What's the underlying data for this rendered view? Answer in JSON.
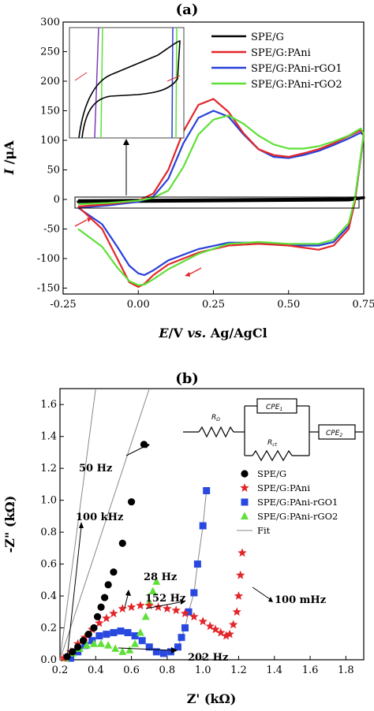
{
  "chart_data": [
    {
      "type": "line",
      "panel_label": "(a)",
      "xlabel_parts": [
        "E",
        "/V ",
        "vs.",
        " Ag/AgCl"
      ],
      "ylabel_parts": [
        "I",
        " /μA"
      ],
      "xlim": [
        -0.25,
        0.75
      ],
      "ylim": [
        -160,
        300
      ],
      "xticks": [
        "-0.25",
        "0.00",
        "0.25",
        "0.50",
        "0.75"
      ],
      "xtick_values": [
        -0.25,
        0,
        0.25,
        0.5,
        0.75
      ],
      "yticks": [
        "-150",
        "-100",
        "-50",
        "0",
        "50",
        "100",
        "150",
        "200",
        "250",
        "300"
      ],
      "ytick_values": [
        -150,
        -100,
        -50,
        0,
        50,
        100,
        150,
        200,
        250,
        300
      ],
      "legend_position": "top-right",
      "series": [
        {
          "name": "SPE/G",
          "color": "#000000",
          "x": [
            -0.2,
            0.1,
            0.4,
            0.7,
            0.75,
            0.7,
            0.4,
            0.1,
            -0.2,
            -0.2
          ],
          "y": [
            -2,
            -1,
            0,
            1,
            3,
            -1,
            -2,
            -3,
            -4,
            -2
          ]
        },
        {
          "name": "SPE/G:PAni",
          "color": "#e2262a",
          "x": [
            -0.2,
            -0.1,
            0.0,
            0.05,
            0.1,
            0.15,
            0.2,
            0.25,
            0.3,
            0.35,
            0.4,
            0.45,
            0.5,
            0.55,
            0.6,
            0.65,
            0.7,
            0.74,
            0.75,
            0.72,
            0.7,
            0.65,
            0.6,
            0.5,
            0.4,
            0.3,
            0.2,
            0.1,
            0.05,
            0.02,
            0.0,
            -0.03,
            -0.07,
            -0.12,
            -0.2
          ],
          "y": [
            -12,
            -8,
            -2,
            10,
            50,
            115,
            160,
            170,
            148,
            112,
            85,
            75,
            72,
            78,
            85,
            95,
            107,
            117,
            110,
            -5,
            -50,
            -78,
            -85,
            -78,
            -75,
            -78,
            -90,
            -110,
            -128,
            -143,
            -148,
            -140,
            -100,
            -50,
            -12
          ]
        },
        {
          "name": "SPE/G:PAni-rGO1",
          "color": "#2840d8",
          "x": [
            -0.2,
            -0.1,
            0.0,
            0.05,
            0.1,
            0.15,
            0.2,
            0.25,
            0.3,
            0.35,
            0.4,
            0.45,
            0.5,
            0.55,
            0.6,
            0.65,
            0.7,
            0.74,
            0.75,
            0.72,
            0.7,
            0.65,
            0.6,
            0.5,
            0.4,
            0.3,
            0.2,
            0.1,
            0.05,
            0.02,
            0.0,
            -0.03,
            -0.07,
            -0.12,
            -0.2
          ],
          "y": [
            -14,
            -10,
            -4,
            5,
            35,
            95,
            138,
            150,
            140,
            110,
            85,
            72,
            70,
            75,
            82,
            92,
            103,
            113,
            108,
            -5,
            -45,
            -72,
            -78,
            -78,
            -73,
            -73,
            -84,
            -103,
            -120,
            -128,
            -125,
            -112,
            -80,
            -42,
            -14
          ]
        },
        {
          "name": "SPE/G:PAni-rGO2",
          "color": "#5fe038",
          "x": [
            -0.2,
            -0.1,
            0.0,
            0.05,
            0.1,
            0.15,
            0.2,
            0.25,
            0.3,
            0.35,
            0.4,
            0.45,
            0.5,
            0.55,
            0.6,
            0.65,
            0.7,
            0.74,
            0.75,
            0.72,
            0.7,
            0.65,
            0.6,
            0.5,
            0.4,
            0.3,
            0.2,
            0.1,
            0.05,
            0.02,
            0.0,
            -0.03,
            -0.07,
            -0.12,
            -0.2
          ],
          "y": [
            -8,
            -6,
            -2,
            3,
            15,
            55,
            110,
            135,
            142,
            128,
            108,
            93,
            86,
            86,
            90,
            98,
            108,
            120,
            112,
            0,
            -40,
            -68,
            -75,
            -75,
            -72,
            -75,
            -92,
            -118,
            -135,
            -144,
            -145,
            -138,
            -115,
            -80,
            -50
          ]
        }
      ],
      "annotations": [
        {
          "type": "inset",
          "note": "zoom of SPE/G near 0 μA"
        }
      ]
    },
    {
      "type": "scatter",
      "panel_label": "(b)",
      "xlabel": "Z' (kΩ)",
      "ylabel": "-Z\" (kΩ)",
      "xlim": [
        0.2,
        1.9
      ],
      "ylim": [
        0,
        1.7
      ],
      "xticks": [
        "0.2",
        "0.4",
        "0.6",
        "0.8",
        "1.0",
        "1.2",
        "1.4",
        "1.6",
        "1.8"
      ],
      "xtick_values": [
        0.2,
        0.4,
        0.6,
        0.8,
        1.0,
        1.2,
        1.4,
        1.6,
        1.8
      ],
      "yticks": [
        "0.0",
        "0.2",
        "0.4",
        "0.6",
        "0.8",
        "1.0",
        "1.2",
        "1.4",
        "1.6"
      ],
      "ytick_values": [
        0,
        0.2,
        0.4,
        0.6,
        0.8,
        1.0,
        1.2,
        1.4,
        1.6
      ],
      "legend_position": "right",
      "series": [
        {
          "name": "SPE/G",
          "color": "#000000",
          "marker": "circle",
          "x": [
            0.24,
            0.27,
            0.3,
            0.33,
            0.36,
            0.39,
            0.41,
            0.43,
            0.45,
            0.47,
            0.5,
            0.55,
            0.6,
            0.67
          ],
          "y": [
            0.02,
            0.05,
            0.08,
            0.12,
            0.16,
            0.2,
            0.27,
            0.33,
            0.39,
            0.47,
            0.55,
            0.73,
            0.99,
            1.35
          ]
        },
        {
          "name": "SPE/G:PAni",
          "color": "#e2262a",
          "marker": "star",
          "x": [
            0.22,
            0.26,
            0.3,
            0.34,
            0.38,
            0.42,
            0.46,
            0.5,
            0.55,
            0.6,
            0.65,
            0.7,
            0.75,
            0.8,
            0.85,
            0.9,
            0.95,
            1.0,
            1.04,
            1.07,
            1.1,
            1.13,
            1.15,
            1.17,
            1.19,
            1.2,
            1.21,
            1.22
          ],
          "y": [
            0.01,
            0.05,
            0.1,
            0.14,
            0.19,
            0.23,
            0.26,
            0.29,
            0.32,
            0.33,
            0.34,
            0.34,
            0.33,
            0.32,
            0.31,
            0.29,
            0.27,
            0.24,
            0.21,
            0.19,
            0.17,
            0.15,
            0.16,
            0.22,
            0.3,
            0.4,
            0.53,
            0.67
          ]
        },
        {
          "name": "SPE/G:PAni-rGO1",
          "color": "#2848e0",
          "marker": "square",
          "x": [
            0.26,
            0.3,
            0.34,
            0.38,
            0.42,
            0.46,
            0.5,
            0.54,
            0.58,
            0.62,
            0.66,
            0.7,
            0.74,
            0.78,
            0.82,
            0.86,
            0.88,
            0.9,
            0.92,
            0.95,
            0.97,
            1.0,
            1.02
          ],
          "y": [
            0.01,
            0.05,
            0.09,
            0.12,
            0.15,
            0.16,
            0.17,
            0.18,
            0.17,
            0.15,
            0.12,
            0.08,
            0.05,
            0.04,
            0.05,
            0.08,
            0.14,
            0.2,
            0.3,
            0.42,
            0.6,
            0.84,
            1.06
          ]
        },
        {
          "name": "SPE/G:PAni-rGO2",
          "color": "#5fe038",
          "marker": "triangle",
          "x": [
            0.23,
            0.27,
            0.31,
            0.35,
            0.39,
            0.43,
            0.47,
            0.51,
            0.55,
            0.59,
            0.62,
            0.65,
            0.68,
            0.7,
            0.72,
            0.74
          ],
          "y": [
            0.01,
            0.04,
            0.07,
            0.09,
            0.1,
            0.1,
            0.09,
            0.07,
            0.05,
            0.06,
            0.1,
            0.17,
            0.27,
            0.36,
            0.43,
            0.49
          ]
        },
        {
          "name": "Fit",
          "color": "#888888",
          "marker": "line",
          "x": [
            0.2,
            0.7
          ],
          "y": [
            0.0,
            1.7
          ]
        }
      ],
      "annotations": [
        {
          "text": "50 Hz"
        },
        {
          "text": "100 kHz"
        },
        {
          "text": "28 Hz"
        },
        {
          "text": "152 Hz"
        },
        {
          "text": "202 Hz"
        },
        {
          "text": "100 mHz"
        }
      ],
      "circuit_labels": [
        "R",
        "Ω",
        "CPE",
        "1",
        "R",
        "ct",
        "CPE",
        "2"
      ]
    }
  ],
  "legend_a_extra": [
    "SPE/G:PAni-rGO1",
    "SPE/G:PAni-rGO2"
  ]
}
